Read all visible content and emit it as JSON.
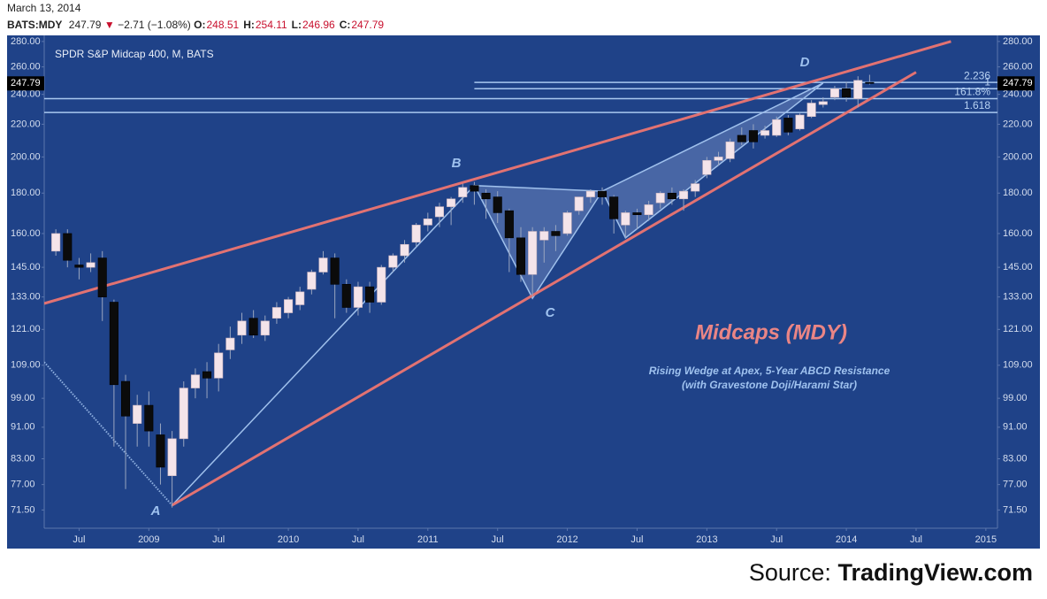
{
  "header": {
    "date": "March 13, 2014",
    "symbol": "BATS:MDY",
    "price": "247.79",
    "arrow": "▼",
    "change": "−2.71 (−1.08%)",
    "ohlc": [
      {
        "label": "O:",
        "value": "248.51"
      },
      {
        "label": "H:",
        "value": "254.11"
      },
      {
        "label": "L:",
        "value": "246.96"
      },
      {
        "label": "C:",
        "value": "247.79"
      }
    ]
  },
  "source": {
    "prefix": "Source:",
    "site": "TradingView.com"
  },
  "chart_data": {
    "type": "candlestick",
    "title": "SPDR S&P Midcap 400, M, BATS",
    "annotation": "Midcaps (MDY)",
    "notes": [
      "Rising Wedge at Apex, 5-Year ABCD Resistance",
      "(with Gravestone Doji/Harami Star)"
    ],
    "point_labels": [
      "A",
      "B",
      "C",
      "D"
    ],
    "log_scale": true,
    "up_color": "#f4e4ea",
    "down_color": "#0b0b0b",
    "last_price": 247.79,
    "x": [
      "2008-05",
      "2008-06",
      "2008-07",
      "2008-08",
      "2008-09",
      "2008-10",
      "2008-11",
      "2008-12",
      "2009-01",
      "2009-02",
      "2009-03",
      "2009-04",
      "2009-05",
      "2009-06",
      "2009-07",
      "2009-08",
      "2009-09",
      "2009-10",
      "2009-11",
      "2009-12",
      "2010-01",
      "2010-02",
      "2010-03",
      "2010-04",
      "2010-05",
      "2010-06",
      "2010-07",
      "2010-08",
      "2010-09",
      "2010-10",
      "2010-11",
      "2010-12",
      "2011-01",
      "2011-02",
      "2011-03",
      "2011-04",
      "2011-05",
      "2011-06",
      "2011-07",
      "2011-08",
      "2011-09",
      "2011-10",
      "2011-11",
      "2011-12",
      "2012-01",
      "2012-02",
      "2012-03",
      "2012-04",
      "2012-05",
      "2012-06",
      "2012-07",
      "2012-08",
      "2012-09",
      "2012-10",
      "2012-11",
      "2012-12",
      "2013-01",
      "2013-02",
      "2013-03",
      "2013-04",
      "2013-05",
      "2013-06",
      "2013-07",
      "2013-08",
      "2013-09",
      "2013-10",
      "2013-11",
      "2013-12",
      "2014-01",
      "2014-02",
      "2014-03"
    ],
    "open": [
      152,
      160,
      146,
      145,
      149,
      131,
      104,
      92,
      97,
      89,
      79,
      88,
      102,
      107,
      105,
      114,
      119,
      125,
      119,
      125,
      127,
      130,
      136,
      143,
      149,
      138,
      129,
      137,
      131,
      145,
      150,
      156,
      164,
      168,
      173,
      178,
      184,
      180,
      178,
      171,
      158,
      142,
      157,
      161,
      160,
      171,
      178,
      181,
      178,
      164,
      170,
      169,
      175,
      180,
      177,
      181,
      190,
      198,
      199,
      213,
      216,
      213,
      213,
      224,
      217,
      225,
      233,
      238,
      244,
      237,
      248.51
    ],
    "high": [
      162,
      162,
      149,
      151,
      152,
      132,
      106,
      100,
      101,
      92,
      90,
      104,
      108,
      110,
      116,
      122,
      127,
      128,
      126,
      131,
      133,
      137,
      144,
      152,
      151,
      140,
      139,
      139,
      146,
      151,
      157,
      165,
      170,
      175,
      178,
      185,
      186,
      182,
      181,
      172,
      163,
      163,
      163,
      164,
      171,
      178,
      182,
      183,
      179,
      171,
      172,
      176,
      181,
      183,
      182,
      187,
      200,
      203,
      211,
      218,
      220,
      219,
      225,
      226,
      227,
      236,
      238,
      246,
      249,
      253,
      254.11
    ],
    "low": [
      150,
      145,
      140,
      143,
      124,
      86,
      76,
      86,
      86,
      77,
      72,
      86,
      99,
      99,
      101,
      111,
      116,
      118,
      117,
      123,
      125,
      128,
      134,
      142,
      125,
      127,
      126,
      127,
      130,
      143,
      147,
      154,
      161,
      163,
      164,
      175,
      174,
      167,
      165,
      143,
      139,
      133,
      147,
      152,
      159,
      169,
      175,
      174,
      160,
      158,
      162,
      166,
      172,
      174,
      171,
      178,
      188,
      195,
      197,
      207,
      205,
      211,
      212,
      213,
      216,
      224,
      231,
      236,
      235,
      231,
      246.96
    ],
    "close": [
      160,
      148,
      145,
      147,
      133,
      103,
      94,
      97,
      90,
      81,
      88,
      102,
      106,
      105,
      113,
      118,
      124,
      119,
      124,
      129,
      132,
      135,
      143,
      149,
      138,
      129,
      137,
      131,
      145,
      150,
      155,
      164,
      167,
      173,
      177,
      183,
      181,
      177,
      170,
      158,
      142,
      161,
      161,
      159,
      170,
      178,
      181,
      178,
      167,
      170,
      169,
      174,
      180,
      177,
      181,
      185,
      198,
      200,
      209,
      209,
      209,
      216,
      223,
      215,
      226,
      234,
      235,
      244,
      238,
      250,
      247.79
    ],
    "xlim": [
      "2008-04",
      "2015-02"
    ],
    "xticks": [
      {
        "value": "2008-07",
        "label": "Jul"
      },
      {
        "value": "2009-01",
        "label": "2009"
      },
      {
        "value": "2009-07",
        "label": "Jul"
      },
      {
        "value": "2010-01",
        "label": "2010"
      },
      {
        "value": "2010-07",
        "label": "Jul"
      },
      {
        "value": "2011-01",
        "label": "2011"
      },
      {
        "value": "2011-07",
        "label": "Jul"
      },
      {
        "value": "2012-01",
        "label": "2012"
      },
      {
        "value": "2012-07",
        "label": "Jul"
      },
      {
        "value": "2013-01",
        "label": "2013"
      },
      {
        "value": "2013-07",
        "label": "Jul"
      },
      {
        "value": "2014-01",
        "label": "2014"
      },
      {
        "value": "2014-07",
        "label": "Jul"
      },
      {
        "value": "2015-01",
        "label": "2015"
      }
    ],
    "ylim": [
      67.8,
      285
    ],
    "yticks": [
      {
        "value": 71.5,
        "label": "71.50"
      },
      {
        "value": 77,
        "label": "77.00"
      },
      {
        "value": 83,
        "label": "83.00"
      },
      {
        "value": 91,
        "label": "91.00"
      },
      {
        "value": 99,
        "label": "99.00"
      },
      {
        "value": 109,
        "label": "109.00"
      },
      {
        "value": 121,
        "label": "121.00"
      },
      {
        "value": 133,
        "label": "133.00"
      },
      {
        "value": 145,
        "label": "145.00"
      },
      {
        "value": 160,
        "label": "160.00"
      },
      {
        "value": 180,
        "label": "180.00"
      },
      {
        "value": 200,
        "label": "200.00"
      },
      {
        "value": 220,
        "label": "220.00"
      },
      {
        "value": 240,
        "label": "240.00"
      },
      {
        "value": 260,
        "label": "260.00"
      },
      {
        "value": 280,
        "label": "280.00"
      }
    ],
    "fib_levels": [
      {
        "value": 248.5,
        "label": "2.236",
        "start": "2011-05"
      },
      {
        "value": 244,
        "label": "1",
        "start": "2011-05"
      },
      {
        "value": 237,
        "label": "161.8%",
        "start": "2008-04"
      },
      {
        "value": 227.7,
        "label": "1.618",
        "start": "2008-04"
      }
    ],
    "drawings": [
      {
        "kind": "dotted",
        "points": [
          [
            "2008-04",
            110
          ],
          [
            "2009-03",
            72.5
          ]
        ]
      },
      {
        "kind": "pattern",
        "points": [
          [
            "2009-03",
            72.5
          ],
          [
            "2011-05",
            184
          ]
        ]
      },
      {
        "kind": "pattern-fill",
        "points": [
          [
            "2011-05",
            184
          ],
          [
            "2011-10",
            132.5
          ],
          [
            "2012-04",
            181
          ]
        ]
      },
      {
        "kind": "pattern-fill",
        "points": [
          [
            "2012-04",
            181
          ],
          [
            "2012-06",
            158
          ],
          [
            "2013-11",
            248
          ]
        ]
      },
      {
        "kind": "wedge",
        "points": [
          [
            "2008-04",
            130.5
          ],
          [
            "2014-10",
            280
          ]
        ]
      },
      {
        "kind": "wedge",
        "points": [
          [
            "2009-03",
            72.5
          ],
          [
            "2014-07",
            256
          ]
        ]
      }
    ]
  }
}
